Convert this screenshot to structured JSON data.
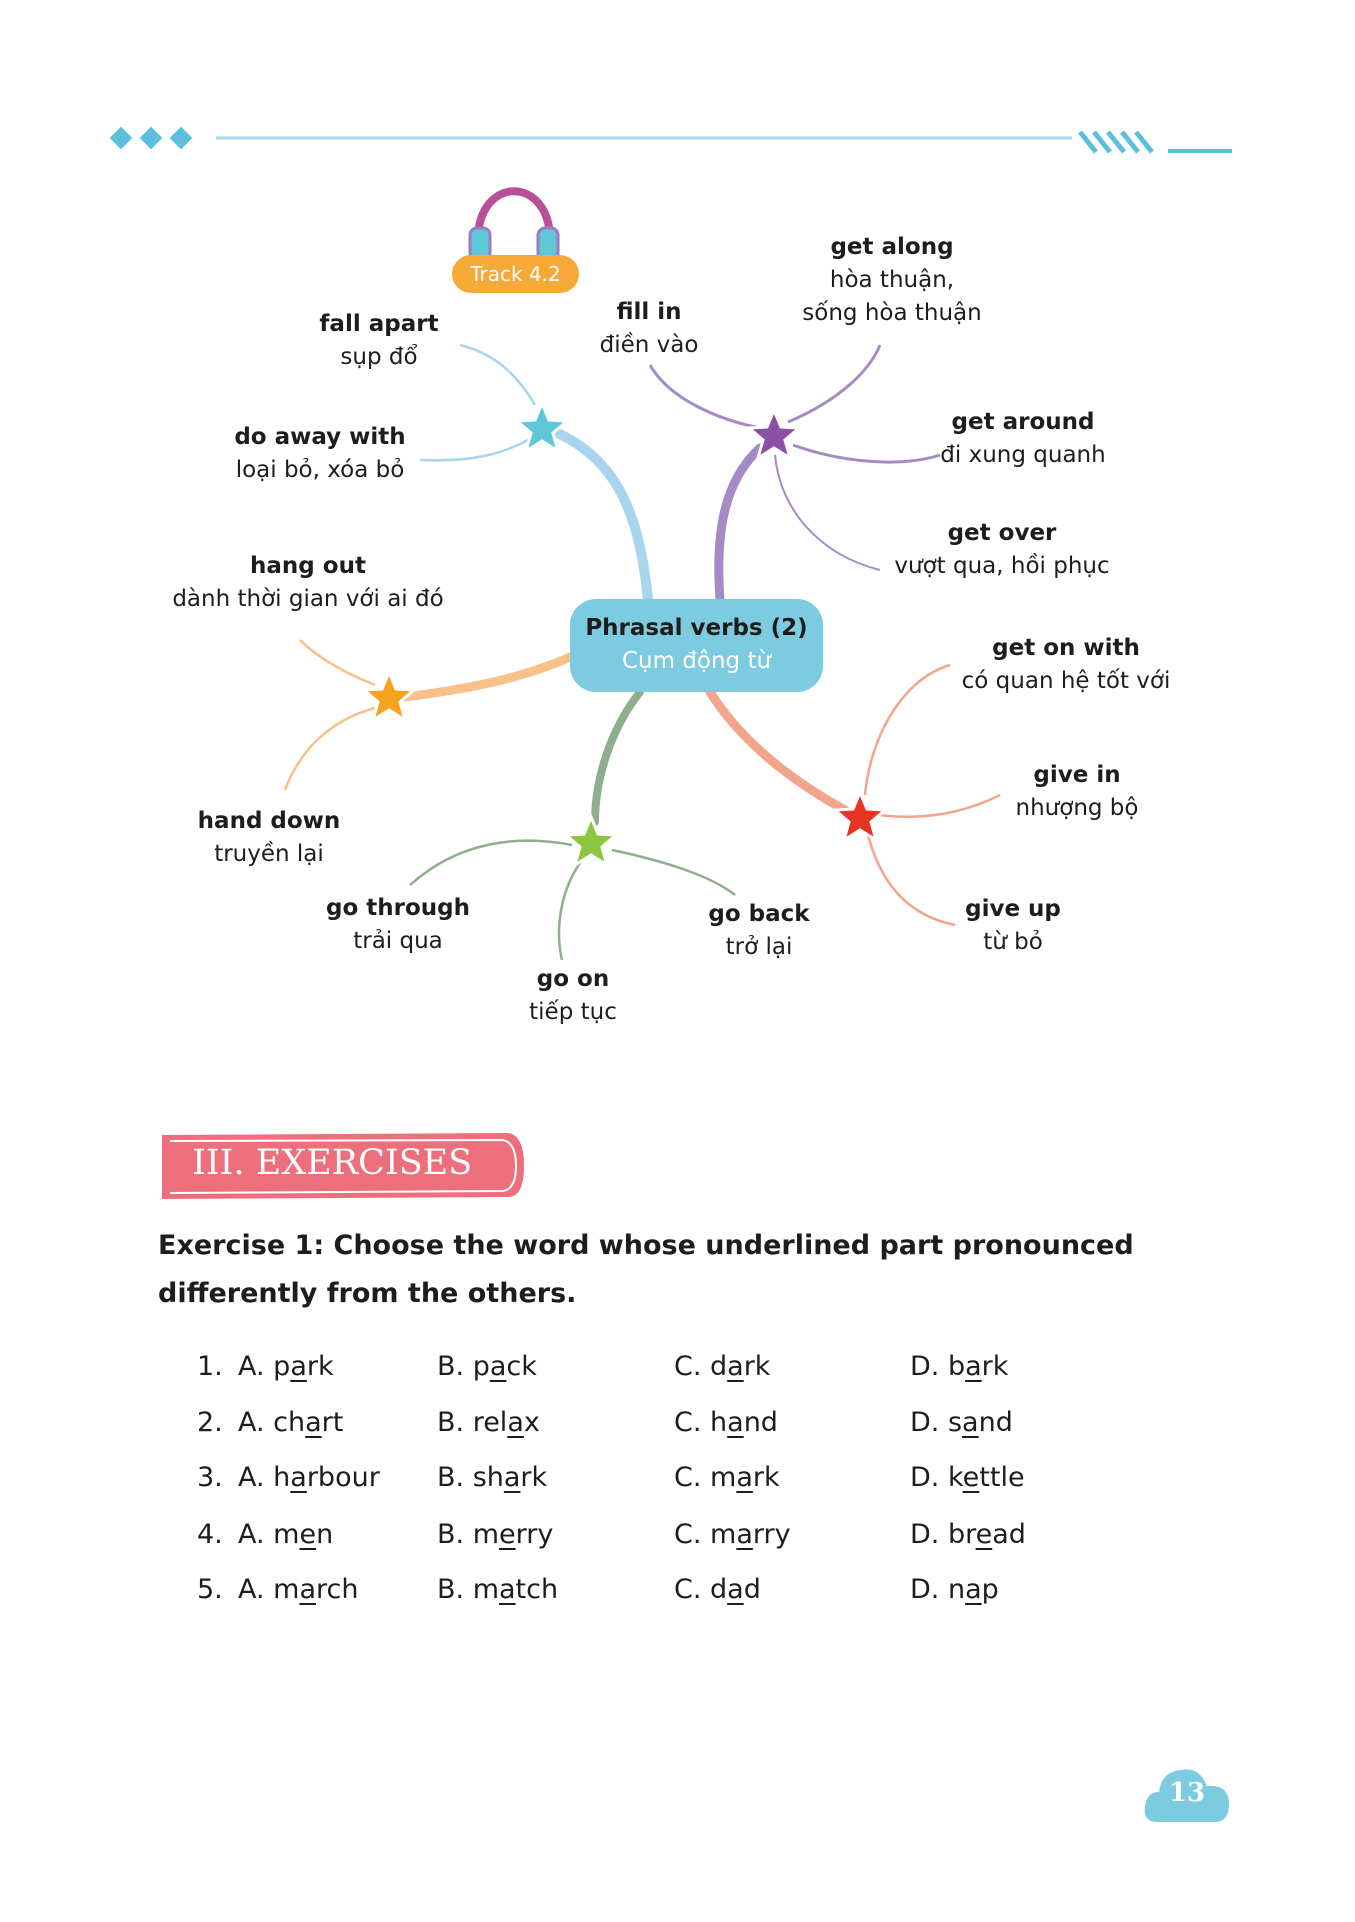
{
  "header": {
    "accent_color": "#5bc0de"
  },
  "mindmap": {
    "track_label": "Track 4.2",
    "center": {
      "title": "Phrasal verbs (2)",
      "subtitle": "Cụm động từ",
      "color": "#7ccbe0"
    },
    "branches": [
      {
        "color": "#a8d4ee",
        "star_color": "#5ec8d8",
        "items": [
          {
            "en": "fall apart",
            "vi": "sụp đổ"
          },
          {
            "en": "do away with",
            "vi": "loại bỏ, xóa bỏ"
          }
        ]
      },
      {
        "color": "#a48bc4",
        "star_color": "#8b4fa6",
        "items": [
          {
            "en": "fill in",
            "vi": "điền vào"
          },
          {
            "en": "get along",
            "vi": "hòa thuận,",
            "vi2": "sống hòa thuận"
          },
          {
            "en": "get around",
            "vi": "đi xung quanh"
          },
          {
            "en": "get over",
            "vi": "vượt qua, hồi phục"
          }
        ]
      },
      {
        "color": "#f8c08a",
        "star_color": "#f5a21f",
        "items": [
          {
            "en": "hang out",
            "vi": "dành thời gian với ai đó"
          },
          {
            "en": "hand down",
            "vi": "truyền lại"
          }
        ]
      },
      {
        "color": "#8fae8c",
        "star_color": "#8dc63f",
        "items": [
          {
            "en": "go through",
            "vi": "trải qua"
          },
          {
            "en": "go on",
            "vi": "tiếp tục"
          },
          {
            "en": "go back",
            "vi": "trở lại"
          }
        ]
      },
      {
        "color": "#f2a58a",
        "star_color": "#e63323",
        "items": [
          {
            "en": "get on with",
            "vi": "có quan hệ tốt với"
          },
          {
            "en": "give in",
            "vi": "nhượng bộ"
          },
          {
            "en": "give up",
            "vi": "từ bỏ"
          }
        ]
      }
    ]
  },
  "exercises": {
    "section_title": "III. EXERCISES",
    "banner_color": "#ee6f7c",
    "exercise1_title_line1": "Exercise 1: Choose the word whose underlined part pronounced",
    "exercise1_title_line2": "differently from the others.",
    "questions": [
      {
        "num": "1.",
        "options": [
          [
            "A. p",
            "a",
            "rk"
          ],
          [
            "B. p",
            "a",
            "ck"
          ],
          [
            "C. d",
            "a",
            "rk"
          ],
          [
            "D. b",
            "a",
            "rk"
          ]
        ]
      },
      {
        "num": "2.",
        "options": [
          [
            "A. ch",
            "a",
            "rt"
          ],
          [
            "B. rel",
            "a",
            "x"
          ],
          [
            "C. h",
            "a",
            "nd"
          ],
          [
            "D. s",
            "a",
            "nd"
          ]
        ]
      },
      {
        "num": "3.",
        "options": [
          [
            "A. h",
            "a",
            "rbour"
          ],
          [
            "B. sh",
            "a",
            "rk"
          ],
          [
            "C. m",
            "a",
            "rk"
          ],
          [
            "D. k",
            "e",
            "ttle"
          ]
        ]
      },
      {
        "num": "4.",
        "options": [
          [
            "A. m",
            "e",
            "n"
          ],
          [
            "B. m",
            "e",
            "rry"
          ],
          [
            "C. m",
            "a",
            "rry"
          ],
          [
            "D. br",
            "e",
            "ad"
          ]
        ]
      },
      {
        "num": "5.",
        "options": [
          [
            "A. m",
            "a",
            "rch"
          ],
          [
            "B. m",
            "a",
            "tch"
          ],
          [
            "C. d",
            "a",
            "d"
          ],
          [
            "D. n",
            "a",
            "p"
          ]
        ]
      }
    ]
  },
  "page_number": "13"
}
